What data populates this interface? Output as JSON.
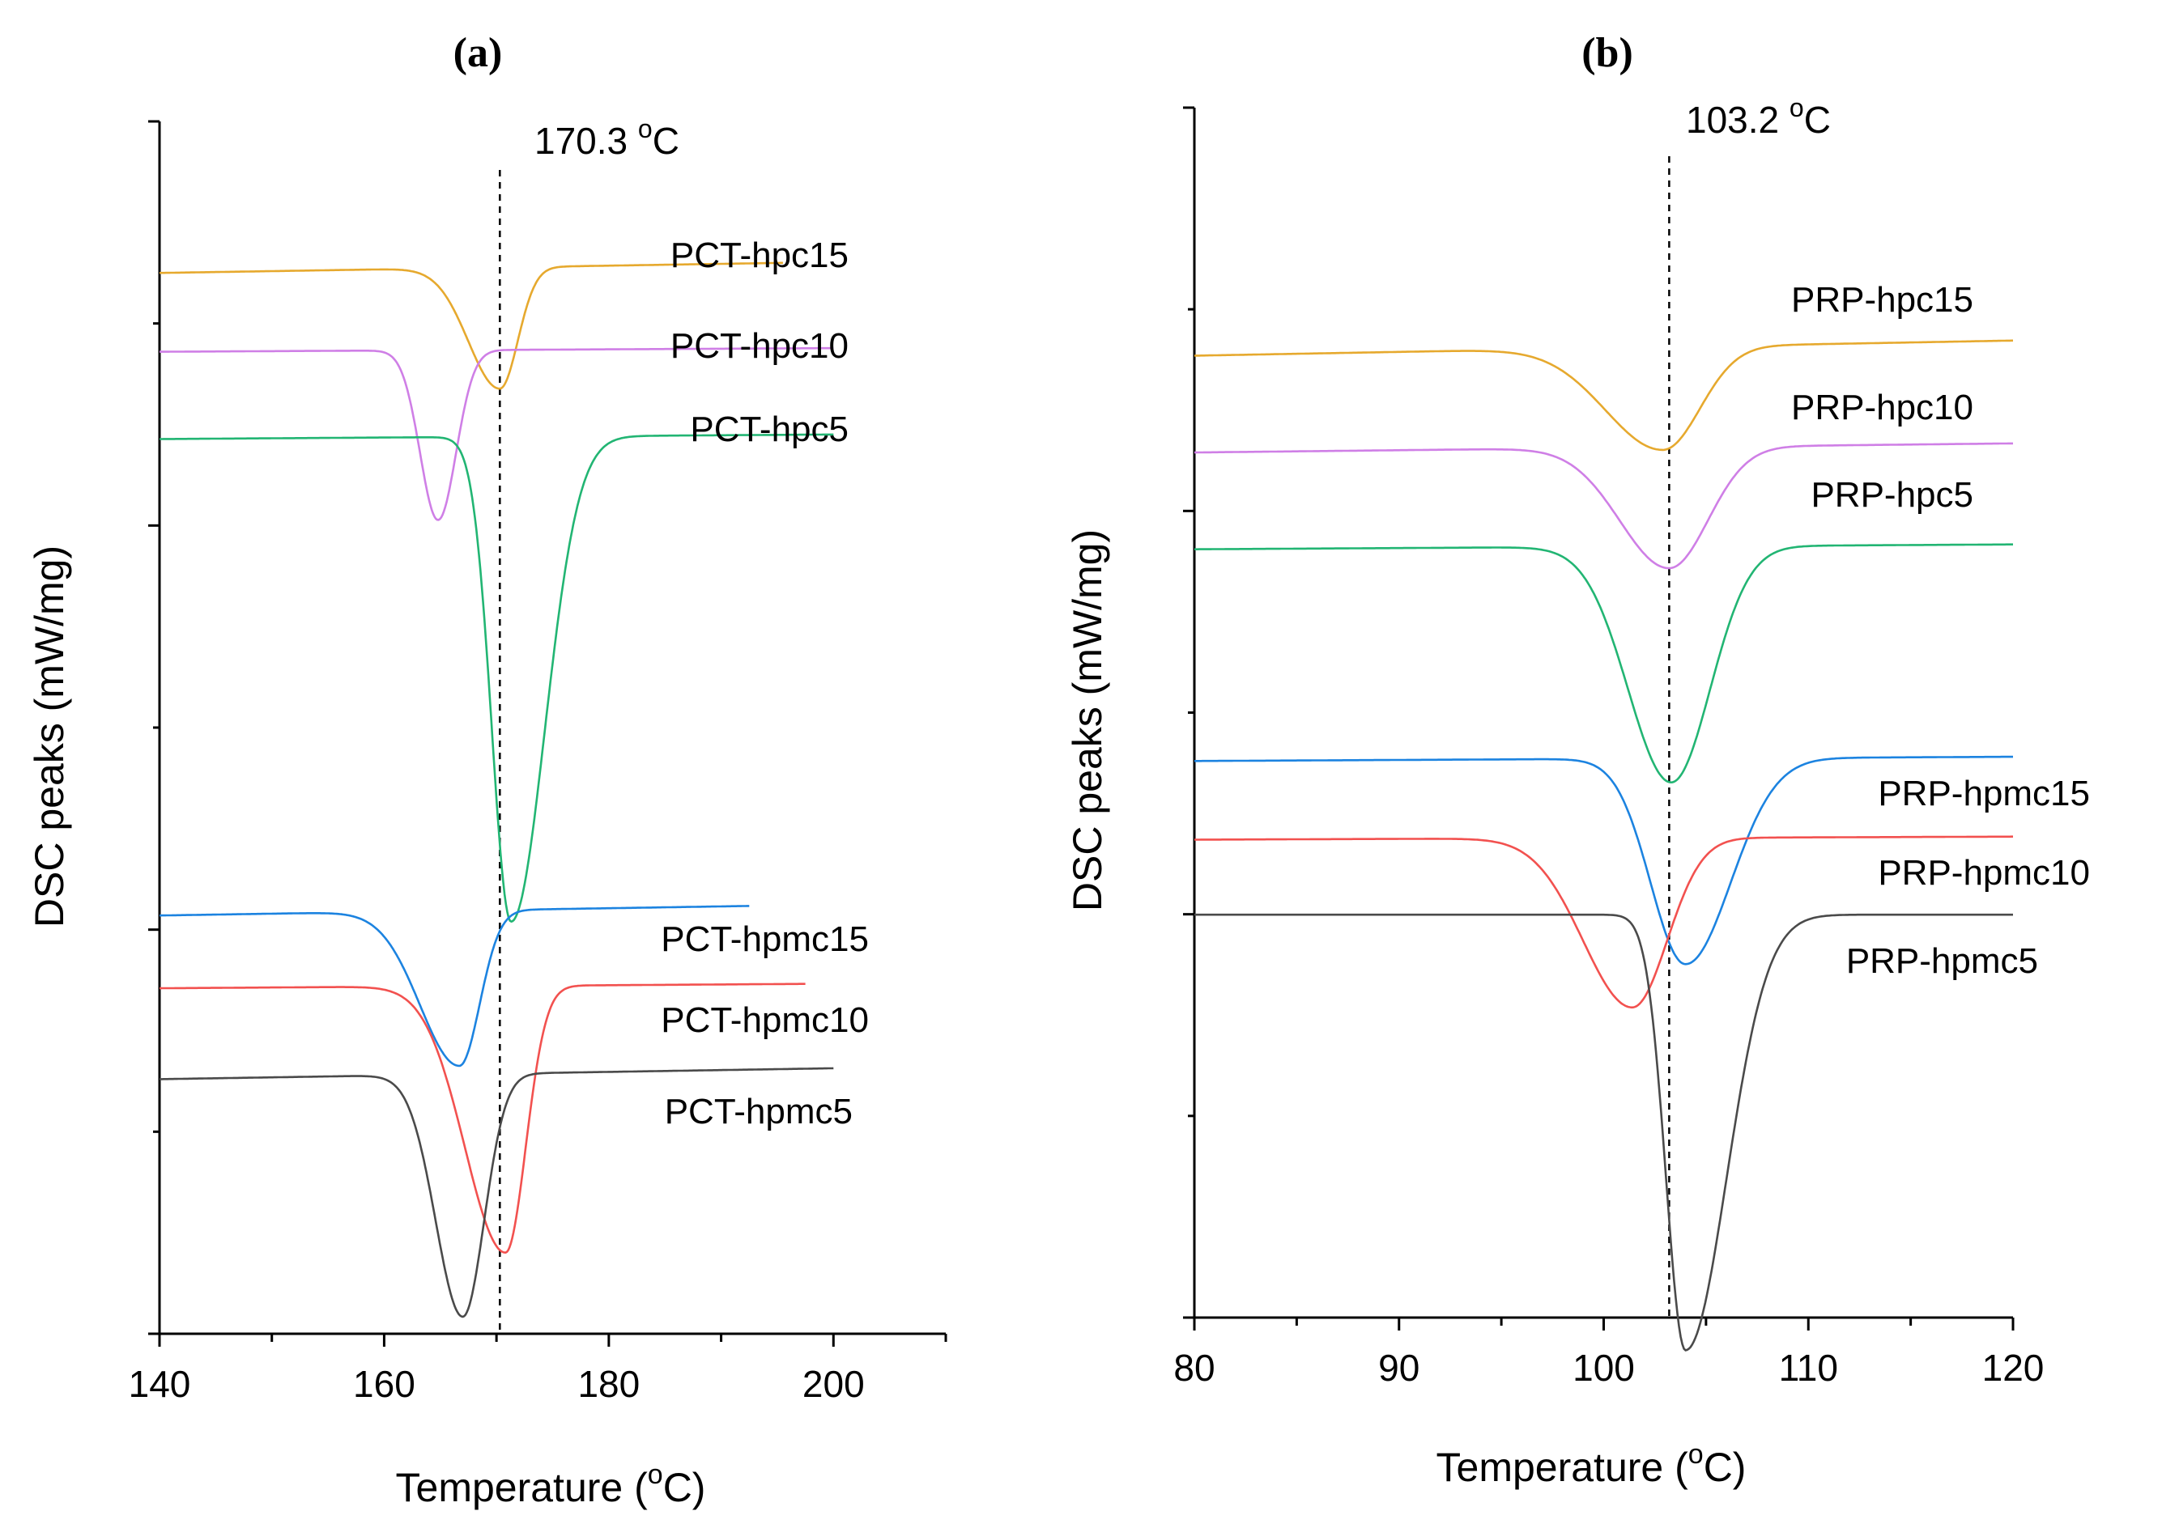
{
  "chart_data": [
    {
      "type": "line",
      "panel": "(a)",
      "xlabel": "Temperature",
      "xlabel_unit_pre": "(",
      "xlabel_unit_sup": "o",
      "xlabel_unit_post": "C)",
      "ylabel": "DSC peaks (mW/mg)",
      "xlim": [
        140,
        210
      ],
      "x_ticks": [
        140,
        160,
        180,
        200
      ],
      "x_minor_ticks": [
        150,
        170,
        190,
        210
      ],
      "y_ticks_count": 4,
      "y_minor_ticks_count": 3,
      "annotation": {
        "value": 170.3,
        "text": "170.3 ",
        "sup": "o",
        "unit": "C"
      },
      "series": [
        {
          "name": "PCT-hpc15",
          "color": "#e6a92e",
          "baseline": 8.75,
          "xmax": 195.5,
          "peak": {
            "x": 170.3,
            "depth": 1.0,
            "sl": 2.8,
            "sr": 1.6
          },
          "drift": 0.12
        },
        {
          "name": "PCT-hpc10",
          "color": "#cf7fe6",
          "baseline": 8.1,
          "xmax": 200,
          "peak": {
            "x": 164.8,
            "depth": 1.4,
            "sl": 1.6,
            "sr": 1.6
          },
          "drift": 0.04
        },
        {
          "name": "PCT-hpc5",
          "color": "#22b573",
          "baseline": 7.38,
          "xmax": 200,
          "peak": {
            "x": 171.3,
            "depth": 4.0,
            "sl": 1.7,
            "sr": 3.0
          },
          "drift": 0.05
        },
        {
          "name": "PCT-hpmc15",
          "color": "#1c83e0",
          "baseline": 3.45,
          "xmax": 192.5,
          "peak": {
            "x": 166.7,
            "depth": 1.28,
            "sl": 3.5,
            "sr": 1.8
          },
          "drift": 0.12
        },
        {
          "name": "PCT-hpmc10",
          "color": "#f2514f",
          "baseline": 2.85,
          "xmax": 197.5,
          "peak": {
            "x": 170.8,
            "depth": 2.2,
            "sl": 3.6,
            "sr": 1.8
          },
          "drift": 0.05
        },
        {
          "name": "PCT-hpmc5",
          "color": "#4a4a4a",
          "baseline": 2.1,
          "xmax": 200,
          "peak": {
            "x": 167.0,
            "depth": 2.0,
            "sl": 2.4,
            "sr": 1.9
          },
          "drift": 0.12
        }
      ]
    },
    {
      "type": "line",
      "panel": "(b)",
      "xlabel": "Temperature",
      "xlabel_unit_pre": "(",
      "xlabel_unit_sup": "o",
      "xlabel_unit_post": "C)",
      "ylabel": "DSC peaks (mW/mg)",
      "xlim": [
        80,
        120
      ],
      "x_ticks": [
        80,
        90,
        100,
        110,
        120
      ],
      "x_minor_ticks": [
        85,
        95,
        105,
        115
      ],
      "y_ticks_count": 4,
      "y_minor_ticks_count": 3,
      "annotation": {
        "value": 103.2,
        "text": "103.2 ",
        "sup": "o",
        "unit": "C"
      },
      "series": [
        {
          "name": "PRP-hpc15",
          "color": "#e6a92e",
          "baseline": 7.95,
          "xmax": 120,
          "peak": {
            "x": 102.9,
            "depth": 0.85,
            "sl": 2.8,
            "sr": 1.8
          },
          "drift": 0.25
        },
        {
          "name": "PRP-hpc10",
          "color": "#cf7fe6",
          "baseline": 7.15,
          "xmax": 120,
          "peak": {
            "x": 103.2,
            "depth": 1.0,
            "sl": 2.4,
            "sr": 1.9
          },
          "drift": 0.15
        },
        {
          "name": "PRP-hpc5",
          "color": "#22b573",
          "baseline": 6.35,
          "xmax": 120,
          "peak": {
            "x": 103.3,
            "depth": 1.95,
            "sl": 2.1,
            "sr": 1.9
          },
          "drift": 0.08
        },
        {
          "name": "PRP-hpmc15",
          "color": "#1c83e0",
          "baseline": 4.6,
          "xmax": 120,
          "peak": {
            "x": 104.0,
            "depth": 1.7,
            "sl": 1.7,
            "sr": 2.2
          },
          "drift": 0.07
        },
        {
          "name": "PRP-hpmc10",
          "color": "#f2514f",
          "baseline": 3.95,
          "xmax": 120,
          "peak": {
            "x": 101.4,
            "depth": 1.4,
            "sl": 2.4,
            "sr": 1.7
          },
          "drift": 0.05
        },
        {
          "name": "PRP-hpmc5",
          "color": "#4a4a4a",
          "baseline": 3.33,
          "xmax": 120,
          "peak": {
            "x": 104.0,
            "depth": 3.6,
            "sl": 0.95,
            "sr": 2.0
          },
          "drift": 0.0
        }
      ]
    }
  ]
}
